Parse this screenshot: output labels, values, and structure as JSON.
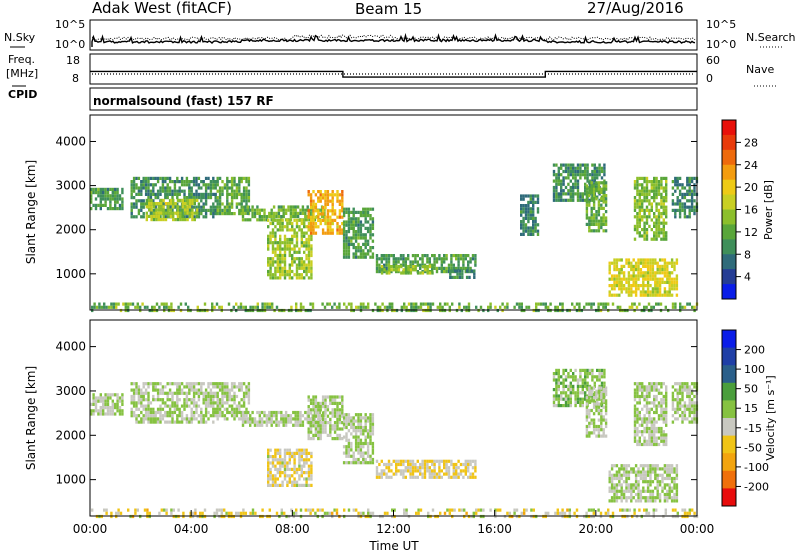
{
  "header": {
    "station": "Adak West (fitACF)",
    "beam": "Beam 15",
    "date": "27/Aug/2016"
  },
  "strips": {
    "nsky": {
      "label": "N.Sky",
      "ticks": [
        "10^5",
        "10^0"
      ]
    },
    "nsearch": {
      "label": "N.Search",
      "ticks": [
        "10^5",
        "10^0"
      ]
    },
    "freq": {
      "label": "Freq.",
      "unit": "[MHz]",
      "ticks": [
        "18",
        "8"
      ],
      "steps": [
        [
          0,
          13.2
        ],
        [
          10.0,
          11.3
        ],
        [
          18.0,
          13.2
        ],
        [
          24,
          13.2
        ]
      ]
    },
    "nave": {
      "label": "Nave",
      "ticks": [
        "60",
        "0"
      ]
    },
    "cpid": {
      "label": "CPID",
      "text": "normalsound (fast) 157 RF"
    }
  },
  "colors": {
    "power": [
      "#0a1de8",
      "#253d94",
      "#2f6b7a",
      "#3f8f5a",
      "#59a63a",
      "#8cbf2c",
      "#c8cf23",
      "#eeca16",
      "#f39c0f",
      "#ee6a0c",
      "#e83a0a",
      "#e8100a"
    ],
    "velocity": [
      "#e80c0c",
      "#f0700b",
      "#f2a40e",
      "#f0c416",
      "#c8c8c0",
      "#86c241",
      "#4a9e3c",
      "#2a5f8a",
      "#1f3fa6",
      "#0a1de8"
    ]
  },
  "chart_data": [
    {
      "type": "heatmap",
      "panel": "power",
      "xlabel": "",
      "ylabel": "Slant Range [km]",
      "xlim_hours": [
        0,
        24
      ],
      "ylim_km": [
        180,
        4600
      ],
      "yticks": [
        "4000",
        "3000",
        "2000",
        "1000"
      ],
      "colorbar": {
        "label": "Power [dB]",
        "ticks": [
          "28",
          "24",
          "20",
          "16",
          "12",
          "8",
          "4"
        ],
        "range": [
          0,
          30
        ]
      },
      "regions": [
        {
          "t0": 0.0,
          "t1": 1.3,
          "r0": 2500,
          "r1": 2950,
          "value": 10
        },
        {
          "t0": 1.6,
          "t1": 5.0,
          "r0": 2300,
          "r1": 3200,
          "value": 9
        },
        {
          "t0": 2.2,
          "t1": 4.2,
          "r0": 2200,
          "r1": 2700,
          "value": 15
        },
        {
          "t0": 5.0,
          "t1": 6.3,
          "r0": 2400,
          "r1": 3200,
          "value": 11
        },
        {
          "t0": 6.0,
          "t1": 9.3,
          "r0": 2200,
          "r1": 2550,
          "value": 12
        },
        {
          "t0": 7.0,
          "t1": 8.8,
          "r0": 900,
          "r1": 2250,
          "value": 14
        },
        {
          "t0": 8.6,
          "t1": 10.0,
          "r0": 1950,
          "r1": 2900,
          "value": 20
        },
        {
          "t0": 10.0,
          "t1": 11.2,
          "r0": 1400,
          "r1": 2500,
          "value": 10
        },
        {
          "t0": 11.3,
          "t1": 15.2,
          "r0": 1050,
          "r1": 1450,
          "value": 10
        },
        {
          "t0": 11.5,
          "t1": 13.5,
          "r0": 1000,
          "r1": 1200,
          "value": 14
        },
        {
          "t0": 14.2,
          "t1": 15.2,
          "r0": 950,
          "r1": 1100,
          "value": 8
        },
        {
          "t0": 17.0,
          "t1": 17.7,
          "r0": 1900,
          "r1": 2800,
          "value": 8
        },
        {
          "t0": 18.3,
          "t1": 20.3,
          "r0": 2700,
          "r1": 3500,
          "value": 9
        },
        {
          "t0": 19.6,
          "t1": 20.4,
          "r0": 2000,
          "r1": 3100,
          "value": 12
        },
        {
          "t0": 21.5,
          "t1": 22.8,
          "r0": 1800,
          "r1": 3200,
          "value": 13
        },
        {
          "t0": 20.5,
          "t1": 23.2,
          "r0": 550,
          "r1": 1350,
          "value": 17
        },
        {
          "t0": 23.0,
          "t1": 24.0,
          "r0": 2300,
          "r1": 3200,
          "value": 8
        }
      ],
      "ground_band": {
        "r0": 200,
        "r1": 350,
        "value": 12
      }
    },
    {
      "type": "heatmap",
      "panel": "velocity",
      "xlabel": "Time UT",
      "ylabel": "Slant Range [km]",
      "xticks": [
        "00:00",
        "04:00",
        "08:00",
        "12:00",
        "16:00",
        "20:00",
        "00:00"
      ],
      "xlim_hours": [
        0,
        24
      ],
      "ylim_km": [
        180,
        4600
      ],
      "yticks": [
        "4000",
        "3000",
        "2000",
        "1000"
      ],
      "colorbar": {
        "label": "Velocity [m s⁻¹]",
        "ticks": [
          "200",
          "100",
          "50",
          "15",
          "-15",
          "-50",
          "-100",
          "-200"
        ],
        "range": [
          -250,
          250
        ]
      },
      "regions": [
        {
          "t0": 0.0,
          "t1": 1.3,
          "r0": 2500,
          "r1": 2950,
          "value": 0
        },
        {
          "t0": 1.6,
          "t1": 5.0,
          "r0": 2300,
          "r1": 3200,
          "value": 0
        },
        {
          "t0": 5.0,
          "t1": 6.3,
          "r0": 2400,
          "r1": 3200,
          "value": 0
        },
        {
          "t0": 6.0,
          "t1": 9.3,
          "r0": 2200,
          "r1": 2550,
          "value": 0
        },
        {
          "t0": 7.0,
          "t1": 8.8,
          "r0": 900,
          "r1": 1700,
          "value": -40
        },
        {
          "t0": 8.6,
          "t1": 10.0,
          "r0": 1950,
          "r1": 2900,
          "value": 0
        },
        {
          "t0": 10.0,
          "t1": 11.2,
          "r0": 1400,
          "r1": 2500,
          "value": 0
        },
        {
          "t0": 11.3,
          "t1": 15.2,
          "r0": 1050,
          "r1": 1450,
          "value": -45
        },
        {
          "t0": 18.3,
          "t1": 20.3,
          "r0": 2700,
          "r1": 3500,
          "value": 25
        },
        {
          "t0": 19.6,
          "t1": 20.4,
          "r0": 2000,
          "r1": 3100,
          "value": 0
        },
        {
          "t0": 21.5,
          "t1": 22.8,
          "r0": 1800,
          "r1": 3200,
          "value": 0
        },
        {
          "t0": 20.5,
          "t1": 23.2,
          "r0": 550,
          "r1": 1350,
          "value": 0
        },
        {
          "t0": 23.0,
          "t1": 24.0,
          "r0": 2300,
          "r1": 3200,
          "value": 0
        }
      ],
      "ground_band": {
        "r0": 200,
        "r1": 350,
        "value": -40
      }
    }
  ]
}
